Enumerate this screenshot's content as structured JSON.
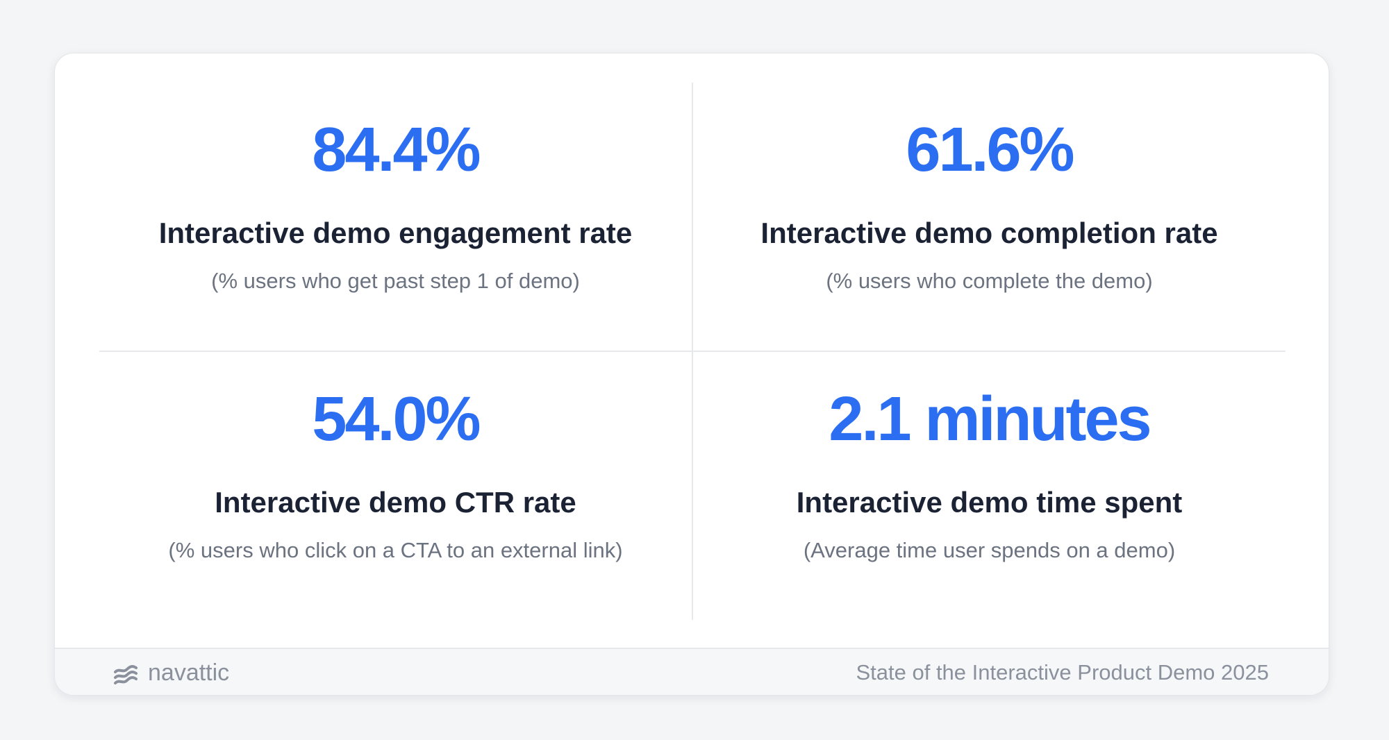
{
  "stats": [
    {
      "value": "84.4%",
      "label": "Interactive demo engagement rate",
      "sub": "(% users who get past step 1 of demo)"
    },
    {
      "value": "61.6%",
      "label": "Interactive demo completion rate",
      "sub": "(% users who complete the demo)"
    },
    {
      "value": "54.0%",
      "label": "Interactive demo CTR rate",
      "sub": "(% users who click on a CTA to an external link)"
    },
    {
      "value": "2.1 minutes",
      "label": "Interactive demo time spent",
      "sub": "(Average time user spends on a demo)"
    }
  ],
  "footer": {
    "brand": "navattic",
    "brand_icon": "navattic-logo-icon",
    "caption": "State of the Interactive Product Demo 2025"
  },
  "colors": {
    "accent": "#2b6ef2",
    "heading": "#1a2233",
    "muted": "#6b7280"
  }
}
